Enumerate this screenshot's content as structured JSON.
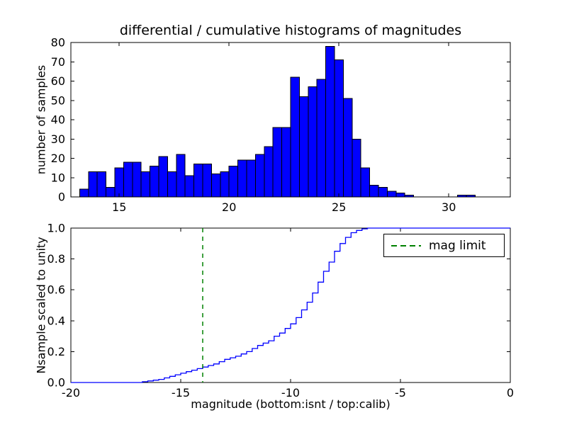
{
  "figure": {
    "background": "#ffffff"
  },
  "chart_data": [
    {
      "type": "bar",
      "name": "differential-histogram",
      "title": "differential / cumulative histograms of magnitudes",
      "xlabel": "",
      "ylabel": "number of samples",
      "xlim": [
        12.8,
        32.8
      ],
      "ylim": [
        0,
        80
      ],
      "xticks": [
        15,
        20,
        25,
        30
      ],
      "xticklabels": [
        "15",
        "20",
        "25",
        "30"
      ],
      "yticks": [
        0,
        10,
        20,
        30,
        40,
        50,
        60,
        70,
        80
      ],
      "yticklabels": [
        "0",
        "10",
        "20",
        "30",
        "40",
        "50",
        "60",
        "70",
        "80"
      ],
      "bin_start": 13.2,
      "bin_width": 0.4,
      "values": [
        4,
        13,
        13,
        5,
        15,
        18,
        18,
        13,
        16,
        21,
        13,
        22,
        11,
        17,
        17,
        12,
        13,
        16,
        19,
        19,
        22,
        26,
        36,
        36,
        62,
        52,
        57,
        61,
        78,
        71,
        51,
        30,
        15,
        6,
        5,
        3,
        2,
        1,
        0,
        0,
        0,
        0,
        0,
        1,
        1
      ],
      "bar_color": "#0000ff",
      "bar_edge_color": "#000000"
    },
    {
      "type": "line",
      "name": "cumulative-histogram",
      "xlabel": "magnitude (bottom:isnt / top:calib)",
      "ylabel": "Nsample scaled to unity",
      "xlim": [
        -20,
        0
      ],
      "ylim": [
        0,
        1
      ],
      "xticks": [
        -20,
        -15,
        -10,
        -5,
        0
      ],
      "xticklabels": [
        "-20",
        "-15",
        "-10",
        "-5",
        "0"
      ],
      "yticks": [
        0,
        0.2,
        0.4,
        0.6,
        0.8,
        1.0
      ],
      "yticklabels": [
        "0.0",
        "0.2",
        "0.4",
        "0.6",
        "0.8",
        "1.0"
      ],
      "line_color": "#0000ff",
      "step_style": true,
      "x": [
        -17.0,
        -16.75,
        -16.5,
        -16.25,
        -16.0,
        -15.75,
        -15.5,
        -15.25,
        -15.0,
        -14.75,
        -14.5,
        -14.25,
        -14.0,
        -13.75,
        -13.5,
        -13.25,
        -13.0,
        -12.75,
        -12.5,
        -12.25,
        -12.0,
        -11.75,
        -11.5,
        -11.25,
        -11.0,
        -10.75,
        -10.5,
        -10.25,
        -10.0,
        -9.75,
        -9.5,
        -9.25,
        -9.0,
        -8.75,
        -8.5,
        -8.25,
        -8.0,
        -7.75,
        -7.5,
        -7.25,
        -7.0,
        -6.75,
        -6.5
      ],
      "y": [
        0.0,
        0.005,
        0.01,
        0.015,
        0.02,
        0.03,
        0.04,
        0.05,
        0.06,
        0.07,
        0.08,
        0.09,
        0.1,
        0.11,
        0.12,
        0.135,
        0.15,
        0.16,
        0.17,
        0.185,
        0.2,
        0.22,
        0.24,
        0.255,
        0.27,
        0.3,
        0.32,
        0.35,
        0.38,
        0.42,
        0.47,
        0.52,
        0.58,
        0.65,
        0.72,
        0.78,
        0.85,
        0.9,
        0.94,
        0.97,
        0.985,
        0.995,
        1.0
      ],
      "mag_limit_x": -14,
      "mag_limit_color": "#008000",
      "mag_limit_linestyle": "dashed",
      "legend": {
        "position": "upper right",
        "entries": [
          {
            "label": "mag limit",
            "color": "#008000",
            "linestyle": "dashed"
          }
        ]
      }
    }
  ]
}
